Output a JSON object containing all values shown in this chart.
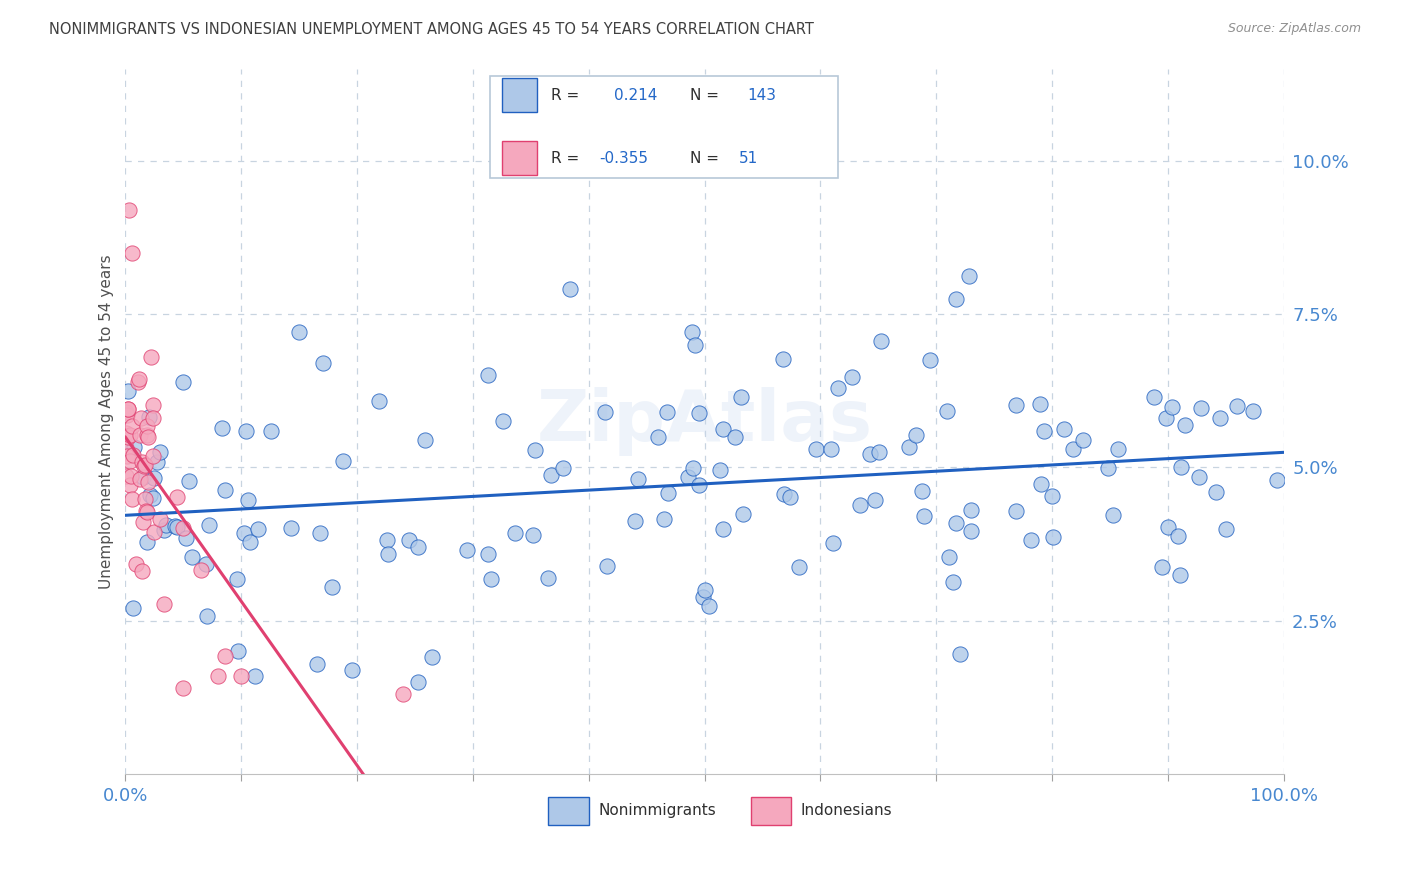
{
  "title": "NONIMMIGRANTS VS INDONESIAN UNEMPLOYMENT AMONG AGES 45 TO 54 YEARS CORRELATION CHART",
  "source": "Source: ZipAtlas.com",
  "ylabel": "Unemployment Among Ages 45 to 54 years",
  "ytick_labels": [
    "2.5%",
    "5.0%",
    "7.5%",
    "10.0%"
  ],
  "blue_scatter_color": "#aec8e8",
  "pink_scatter_color": "#f5a8be",
  "blue_line_color": "#2060c0",
  "pink_line_color": "#e04070",
  "pink_dash_color": "#d0b0c0",
  "background_color": "#ffffff",
  "grid_color": "#c8d4e0",
  "title_color": "#404040",
  "source_color": "#909090",
  "axis_label_color": "#4888d0",
  "legend_R_color": "#303030",
  "legend_N_color": "#2468c8",
  "xlim": [
    0,
    1
  ],
  "ylim": [
    0,
    0.115
  ],
  "yticks": [
    0.025,
    0.05,
    0.075,
    0.1
  ],
  "xticks": [
    0,
    0.1,
    0.2,
    0.3,
    0.4,
    0.5,
    0.6,
    0.7,
    0.8,
    0.9,
    1.0
  ]
}
